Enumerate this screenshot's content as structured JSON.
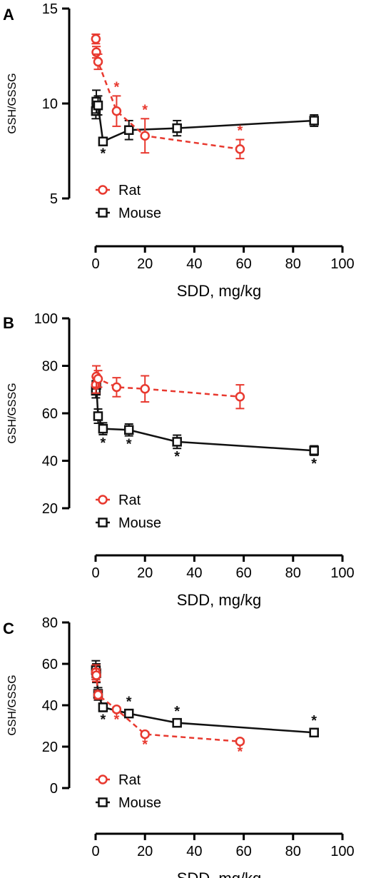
{
  "colors": {
    "rat": "#e8392f",
    "mouse": "#111111",
    "axis": "#000000"
  },
  "chart_data": [
    {
      "panel": "A",
      "type": "line",
      "xlabel": "SDD, mg/kg",
      "ylabel": "GSH/GSSG",
      "xlim": [
        0,
        100
      ],
      "ylim": [
        5,
        15
      ],
      "xticks": [
        "0",
        "20",
        "40",
        "60",
        "80",
        "100"
      ],
      "yticks": [
        "5",
        "10",
        "15"
      ],
      "legend_position": "bottom-left",
      "series": [
        {
          "name": "Rat",
          "marker": "circle",
          "line": "dashed",
          "x": [
            0.1,
            0.3,
            1,
            8.5,
            20,
            58.5
          ],
          "y": [
            13.4,
            12.7,
            12.2,
            9.6,
            8.3,
            7.6
          ],
          "err": [
            0.25,
            0.3,
            0.4,
            0.8,
            0.9,
            0.5
          ],
          "significant": [
            false,
            false,
            false,
            true,
            true,
            true
          ]
        },
        {
          "name": "Mouse",
          "marker": "square",
          "line": "solid",
          "x": [
            0.1,
            0.3,
            1,
            3,
            13.5,
            33,
            88.5
          ],
          "y": [
            9.6,
            10.1,
            9.9,
            8.0,
            8.6,
            8.7,
            9.1
          ],
          "err": [
            0.4,
            0.6,
            0.5,
            0.2,
            0.5,
            0.4,
            0.3
          ],
          "significant": [
            false,
            false,
            false,
            true,
            false,
            false,
            false
          ]
        }
      ]
    },
    {
      "panel": "B",
      "type": "line",
      "xlabel": "SDD, mg/kg",
      "ylabel": "GSH/GSSG",
      "xlim": [
        0,
        100
      ],
      "ylim": [
        20,
        100
      ],
      "xticks": [
        "0",
        "20",
        "40",
        "60",
        "80",
        "100"
      ],
      "yticks": [
        "20",
        "40",
        "60",
        "80",
        "100"
      ],
      "legend_position": "bottom-left",
      "series": [
        {
          "name": "Rat",
          "marker": "circle",
          "line": "dashed",
          "x": [
            0.1,
            0.3,
            1,
            8.5,
            20,
            58.5
          ],
          "y": [
            72,
            75.5,
            74.5,
            71,
            70.3,
            67
          ],
          "err": [
            3.5,
            4.5,
            3.5,
            4,
            5.5,
            5
          ],
          "significant": [
            false,
            false,
            false,
            false,
            false,
            false
          ]
        },
        {
          "name": "Mouse",
          "marker": "square",
          "line": "solid",
          "x": [
            0.1,
            0.3,
            1,
            3,
            13.5,
            33,
            88.5
          ],
          "y": [
            69.5,
            72,
            58.8,
            53.5,
            53,
            48,
            44.3
          ],
          "err": [
            3,
            3.5,
            3,
            2.5,
            2.5,
            2.8,
            2
          ],
          "significant": [
            false,
            false,
            false,
            true,
            true,
            true,
            true
          ]
        }
      ]
    },
    {
      "panel": "C",
      "type": "line",
      "xlabel": "SDD, mg/kg",
      "ylabel": "GSH/GSSG",
      "xlim": [
        0,
        100
      ],
      "ylim": [
        0,
        80
      ],
      "xticks": [
        "0",
        "20",
        "40",
        "60",
        "80",
        "100"
      ],
      "yticks": [
        "0",
        "20",
        "40",
        "60",
        "80"
      ],
      "legend_position": "bottom-left",
      "series": [
        {
          "name": "Rat",
          "marker": "circle",
          "line": "dashed",
          "x": [
            0.1,
            0.3,
            1,
            8.5,
            20,
            58.5
          ],
          "y": [
            56,
            54.5,
            45,
            38,
            26,
            22.5
          ],
          "err": [
            3.5,
            3,
            2,
            1,
            1,
            1
          ],
          "significant": [
            false,
            false,
            false,
            true,
            true,
            true
          ]
        },
        {
          "name": "Mouse",
          "marker": "square",
          "line": "solid",
          "x": [
            0.1,
            0.3,
            1,
            3,
            13.5,
            33,
            88.5
          ],
          "y": [
            57,
            55.5,
            45.5,
            39,
            36,
            31.5,
            26.8
          ],
          "err": [
            4.5,
            4.5,
            3,
            2,
            1.5,
            1.2,
            1.5
          ],
          "significant": [
            false,
            false,
            false,
            true,
            true,
            true,
            true
          ]
        }
      ]
    }
  ]
}
